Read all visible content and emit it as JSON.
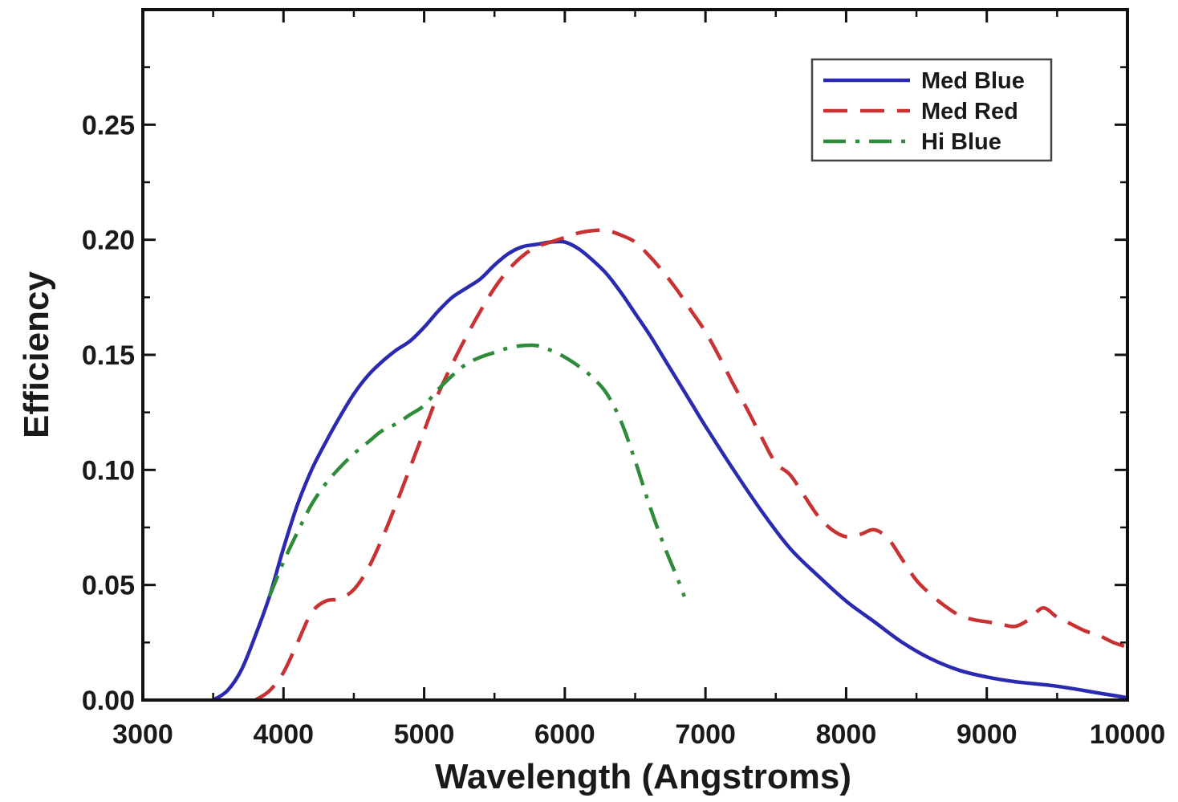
{
  "chart_data": {
    "type": "line",
    "title": "",
    "xlabel": "Wavelength (Angstroms)",
    "ylabel": "Efficiency",
    "xlim": [
      3000,
      10000
    ],
    "ylim": [
      0,
      0.3
    ],
    "grid": false,
    "legend_position": "top-right",
    "x_ticks": [
      3000,
      4000,
      5000,
      6000,
      7000,
      8000,
      9000,
      10000
    ],
    "x_tick_labels": [
      "3000",
      "4000",
      "5000",
      "6000",
      "7000",
      "8000",
      "9000",
      "10000"
    ],
    "y_ticks": [
      0,
      0.05,
      0.1,
      0.15,
      0.2,
      0.25
    ],
    "y_tick_labels": [
      "0.00",
      "0.05",
      "0.10",
      "0.15",
      "0.20",
      "0.25"
    ],
    "series": [
      {
        "name": "Med Blue",
        "color": "#2a2ab0",
        "style": "solid",
        "x": [
          3500,
          3600,
          3700,
          3800,
          3900,
          4000,
          4100,
          4200,
          4300,
          4400,
          4500,
          4600,
          4700,
          4800,
          4900,
          5000,
          5100,
          5200,
          5300,
          5400,
          5500,
          5600,
          5700,
          5800,
          5900,
          6000,
          6100,
          6200,
          6300,
          6400,
          6500,
          6600,
          6700,
          6800,
          6900,
          7000,
          7200,
          7400,
          7600,
          7800,
          8000,
          8200,
          8400,
          8600,
          8800,
          9000,
          9200,
          9500,
          9800,
          10000
        ],
        "y": [
          0.0,
          0.004,
          0.013,
          0.028,
          0.045,
          0.066,
          0.085,
          0.1,
          0.112,
          0.123,
          0.133,
          0.141,
          0.147,
          0.152,
          0.156,
          0.162,
          0.169,
          0.175,
          0.179,
          0.183,
          0.189,
          0.194,
          0.197,
          0.198,
          0.199,
          0.199,
          0.196,
          0.191,
          0.185,
          0.177,
          0.168,
          0.159,
          0.149,
          0.139,
          0.129,
          0.119,
          0.1,
          0.082,
          0.066,
          0.054,
          0.043,
          0.034,
          0.025,
          0.018,
          0.013,
          0.01,
          0.008,
          0.006,
          0.003,
          0.001
        ]
      },
      {
        "name": "Med Red",
        "color": "#c83232",
        "style": "dashed",
        "x": [
          3800,
          3900,
          4000,
          4100,
          4200,
          4300,
          4400,
          4500,
          4600,
          4700,
          4800,
          4900,
          5000,
          5100,
          5200,
          5300,
          5400,
          5500,
          5600,
          5700,
          5800,
          5900,
          6000,
          6100,
          6200,
          6300,
          6400,
          6500,
          6600,
          6700,
          6800,
          6900,
          7000,
          7100,
          7200,
          7300,
          7400,
          7500,
          7600,
          7700,
          7800,
          7900,
          8000,
          8100,
          8200,
          8300,
          8400,
          8500,
          8600,
          8700,
          8800,
          8900,
          9000,
          9100,
          9200,
          9300,
          9400,
          9500,
          9600,
          9700,
          9800,
          9900,
          10000
        ],
        "y": [
          0.0,
          0.004,
          0.012,
          0.025,
          0.038,
          0.043,
          0.044,
          0.048,
          0.057,
          0.07,
          0.085,
          0.101,
          0.117,
          0.133,
          0.146,
          0.158,
          0.169,
          0.179,
          0.187,
          0.193,
          0.197,
          0.199,
          0.201,
          0.203,
          0.204,
          0.204,
          0.202,
          0.199,
          0.193,
          0.186,
          0.178,
          0.169,
          0.16,
          0.149,
          0.137,
          0.126,
          0.114,
          0.103,
          0.098,
          0.089,
          0.08,
          0.074,
          0.071,
          0.072,
          0.074,
          0.07,
          0.061,
          0.052,
          0.046,
          0.041,
          0.037,
          0.035,
          0.034,
          0.033,
          0.032,
          0.035,
          0.04,
          0.036,
          0.033,
          0.03,
          0.028,
          0.025,
          0.023
        ]
      },
      {
        "name": "Hi Blue",
        "color": "#2e8b3a",
        "style": "dashdot",
        "x": [
          3900,
          4000,
          4100,
          4200,
          4300,
          4400,
          4500,
          4600,
          4700,
          4800,
          4900,
          5000,
          5100,
          5200,
          5300,
          5400,
          5500,
          5600,
          5700,
          5800,
          5900,
          6000,
          6100,
          6200,
          6300,
          6400,
          6500,
          6600,
          6700,
          6800,
          6850
        ],
        "y": [
          0.045,
          0.06,
          0.073,
          0.085,
          0.094,
          0.101,
          0.107,
          0.112,
          0.117,
          0.12,
          0.124,
          0.128,
          0.135,
          0.141,
          0.146,
          0.149,
          0.151,
          0.153,
          0.154,
          0.154,
          0.152,
          0.149,
          0.145,
          0.14,
          0.133,
          0.121,
          0.104,
          0.085,
          0.068,
          0.053,
          0.045
        ]
      }
    ]
  }
}
